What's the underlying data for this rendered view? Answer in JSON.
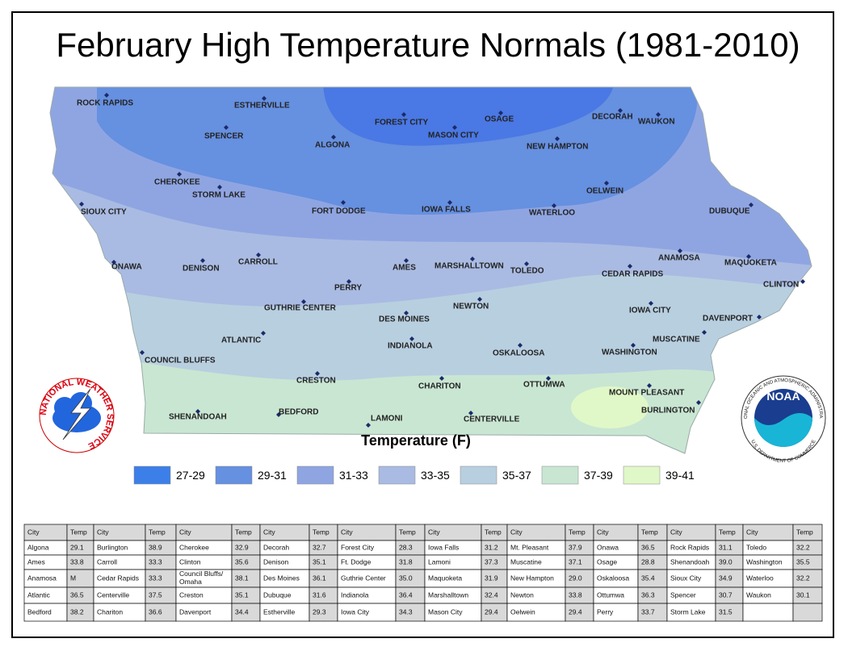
{
  "title": "February High Temperature Normals (1981-2010)",
  "map": {
    "cities": [
      "ROCK RAPIDS",
      "ESTHERVILLE",
      "FOREST CITY",
      "MASON CITY",
      "OSAGE",
      "DECORAH",
      "WAUKON",
      "SPENCER",
      "ALGONA",
      "NEW HAMPTON",
      "CHEROKEE",
      "STORM LAKE",
      "OELWEIN",
      "SIOUX CITY",
      "FORT DODGE",
      "IOWA FALLS",
      "WATERLOO",
      "DUBUQUE",
      "ANAMOSA",
      "MAQUOKETA",
      "ONAWA",
      "DENISON",
      "CARROLL",
      "AMES",
      "MARSHALLTOWN",
      "TOLEDO",
      "CEDAR RAPIDS",
      "CLINTON",
      "PERRY",
      "GUTHRIE CENTER",
      "NEWTON",
      "IOWA CITY",
      "DES MOINES",
      "DAVENPORT",
      "ATLANTIC",
      "MUSCATINE",
      "INDIANOLA",
      "COUNCIL BLUFFS",
      "WASHINGTON",
      "OSKALOOSA",
      "CRESTON",
      "CHARITON",
      "OTTUMWA",
      "MOUNT PLEASANT",
      "BURLINGTON",
      "SHENANDOAH",
      "BEDFORD",
      "LAMONI",
      "CENTERVILLE"
    ]
  },
  "legend": {
    "title": "Temperature (F)",
    "items": [
      {
        "label": "27-29",
        "color": "#3d7fe8"
      },
      {
        "label": "29-31",
        "color": "#6690e0"
      },
      {
        "label": "31-33",
        "color": "#8fa5e2"
      },
      {
        "label": "33-35",
        "color": "#a9bbe2"
      },
      {
        "label": "35-37",
        "color": "#b8cfe0"
      },
      {
        "label": "37-39",
        "color": "#c9e6d2"
      },
      {
        "label": "39-41",
        "color": "#e0f8c8"
      }
    ]
  },
  "logos": {
    "nws": "NATIONAL WEATHER SERVICE",
    "noaa": "NOAA",
    "noaa_top": "NATIONAL OCEANIC AND ATMOSPHERIC ADMINISTRATION",
    "noaa_bottom": "U.S. DEPARTMENT OF COMMERCE"
  },
  "table": {
    "header": [
      "City",
      "Temp",
      "City",
      "Temp",
      "City",
      "Temp",
      "City",
      "Temp",
      "City",
      "Temp",
      "City",
      "Temp",
      "City",
      "Temp",
      "City",
      "Temp",
      "City",
      "Temp",
      "City",
      "Temp"
    ],
    "rows": [
      [
        "Algona",
        "29.1",
        "Burlington",
        "38.9",
        "Cherokee",
        "32.9",
        "Decorah",
        "32.7",
        "Forest City",
        "28.3",
        "Iowa Falls",
        "31.2",
        "Mt. Pleasant",
        "37.9",
        "Onawa",
        "36.5",
        "Rock Rapids",
        "31.1",
        "Toledo",
        "32.2"
      ],
      [
        "Ames",
        "33.8",
        "Carroll",
        "33.3",
        "Clinton",
        "35.6",
        "Denison",
        "35.1",
        "Ft. Dodge",
        "31.8",
        "Lamoni",
        "37.3",
        "Muscatine",
        "37.1",
        "Osage",
        "28.8",
        "Shenandoah",
        "39.0",
        "Washington",
        "35.5"
      ],
      [
        "Anamosa",
        "M",
        "Cedar Rapids",
        "33.3",
        "Council Bluffs/ Omaha",
        "38.1",
        "Des Moines",
        "36.1",
        "Guthrie Center",
        "35.0",
        "Maquoketa",
        "31.9",
        "New Hampton",
        "29.0",
        "Oskaloosa",
        "35.4",
        "Sioux City",
        "34.9",
        "Waterloo",
        "32.2"
      ],
      [
        "Atlantic",
        "36.5",
        "Centerville",
        "37.5",
        "Creston",
        "35.1",
        "Dubuque",
        "31.6",
        "Indianola",
        "36.4",
        "Marshalltown",
        "32.4",
        "Newton",
        "33.8",
        "Ottumwa",
        "36.3",
        "Spencer",
        "30.7",
        "Waukon",
        "30.1"
      ],
      [
        "Bedford",
        "38.2",
        "Chariton",
        "36.6",
        "Davenport",
        "34.4",
        "Estherville",
        "29.3",
        "Iowa City",
        "34.3",
        "Mason City",
        "29.4",
        "Oelwein",
        "29.4",
        "Perry",
        "33.7",
        "Storm Lake",
        "31.5"
      ]
    ]
  }
}
